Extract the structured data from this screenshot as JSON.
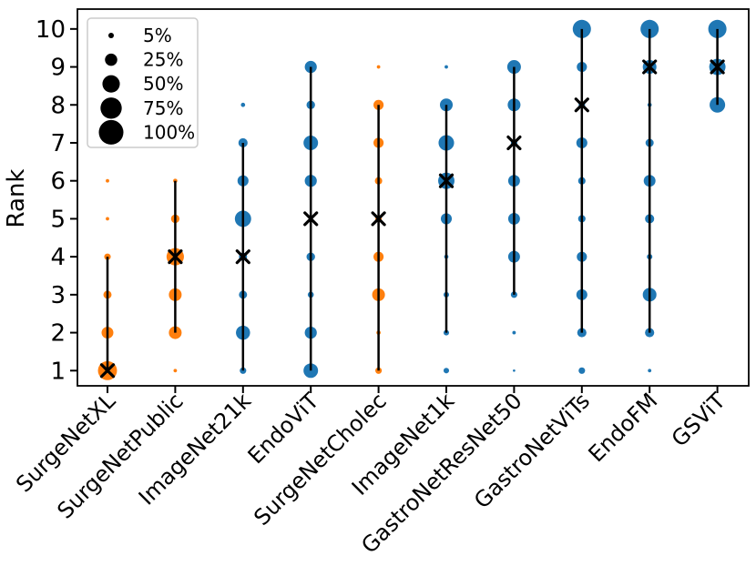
{
  "chart_data": {
    "type": "scatter",
    "title": "",
    "xlabel": "",
    "ylabel": "Rank",
    "yticks": [
      1,
      2,
      3,
      4,
      5,
      6,
      7,
      8,
      9,
      10
    ],
    "ylim": [
      1,
      10
    ],
    "grid": false,
    "xtick_rotation": 45,
    "legend": {
      "position": "upper-left",
      "entries": [
        {
          "label": "5%",
          "pct": 5
        },
        {
          "label": "25%",
          "pct": 25
        },
        {
          "label": "50%",
          "pct": 50
        },
        {
          "label": "75%",
          "pct": 75
        },
        {
          "label": "100%",
          "pct": 100
        }
      ],
      "marker_color": "#000000"
    },
    "colors": {
      "surgenet_series": "#ff7f0e",
      "other_series": "#1f77b4",
      "range_line": "#000000",
      "mean_marker": "#000000"
    },
    "categories": [
      "SurgeNetXL",
      "SurgeNetPublic",
      "ImageNet21k",
      "EndoViT",
      "SurgeNetCholec",
      "ImageNet1k",
      "GastroNetResNet50",
      "GastroNetViTs",
      "EndoFM",
      "GSViT"
    ],
    "series": [
      {
        "name": "SurgeNetXL",
        "color": "#ff7f0e",
        "mean_rank": 1,
        "range": [
          1,
          4
        ],
        "points": [
          {
            "rank": 1,
            "pct": 60
          },
          {
            "rank": 2,
            "pct": 23
          },
          {
            "rank": 3,
            "pct": 11
          },
          {
            "rank": 4,
            "pct": 7
          },
          {
            "rank": 5,
            "pct": 2
          },
          {
            "rank": 6,
            "pct": 2
          }
        ]
      },
      {
        "name": "SurgeNetPublic",
        "color": "#ff7f0e",
        "mean_rank": 4,
        "range": [
          2,
          6
        ],
        "points": [
          {
            "rank": 1,
            "pct": 2
          },
          {
            "rank": 2,
            "pct": 27
          },
          {
            "rank": 3,
            "pct": 27
          },
          {
            "rank": 4,
            "pct": 50
          },
          {
            "rank": 5,
            "pct": 12
          },
          {
            "rank": 6,
            "pct": 3
          }
        ]
      },
      {
        "name": "ImageNet21k",
        "color": "#1f77b4",
        "mean_rank": 4,
        "range": [
          1,
          7
        ],
        "points": [
          {
            "rank": 1,
            "pct": 7
          },
          {
            "rank": 2,
            "pct": 33
          },
          {
            "rank": 3,
            "pct": 11
          },
          {
            "rank": 4,
            "pct": 11
          },
          {
            "rank": 5,
            "pct": 44
          },
          {
            "rank": 6,
            "pct": 20
          },
          {
            "rank": 7,
            "pct": 14
          },
          {
            "rank": 8,
            "pct": 3
          }
        ]
      },
      {
        "name": "EndoViT",
        "color": "#1f77b4",
        "mean_rank": 5,
        "range": [
          1,
          9
        ],
        "points": [
          {
            "rank": 1,
            "pct": 35
          },
          {
            "rank": 2,
            "pct": 24
          },
          {
            "rank": 3,
            "pct": 6
          },
          {
            "rank": 4,
            "pct": 12
          },
          {
            "rank": 5,
            "pct": 2
          },
          {
            "rank": 6,
            "pct": 24
          },
          {
            "rank": 7,
            "pct": 35
          },
          {
            "rank": 8,
            "pct": 12
          },
          {
            "rank": 9,
            "pct": 24
          }
        ]
      },
      {
        "name": "SurgeNetCholec",
        "color": "#ff7f0e",
        "mean_rank": 5,
        "range": [
          1,
          8
        ],
        "points": [
          {
            "rank": 1,
            "pct": 7
          },
          {
            "rank": 2,
            "pct": 3
          },
          {
            "rank": 3,
            "pct": 27
          },
          {
            "rank": 4,
            "pct": 17
          },
          {
            "rank": 5,
            "pct": 7
          },
          {
            "rank": 6,
            "pct": 9
          },
          {
            "rank": 7,
            "pct": 17
          },
          {
            "rank": 8,
            "pct": 17
          },
          {
            "rank": 9,
            "pct": 2
          }
        ]
      },
      {
        "name": "ImageNet1k",
        "color": "#1f77b4",
        "mean_rank": 6,
        "range": [
          2,
          8
        ],
        "points": [
          {
            "rank": 1,
            "pct": 5
          },
          {
            "rank": 2,
            "pct": 5
          },
          {
            "rank": 3,
            "pct": 5
          },
          {
            "rank": 4,
            "pct": 3
          },
          {
            "rank": 5,
            "pct": 20
          },
          {
            "rank": 6,
            "pct": 44
          },
          {
            "rank": 7,
            "pct": 40
          },
          {
            "rank": 8,
            "pct": 27
          },
          {
            "rank": 9,
            "pct": 2
          }
        ]
      },
      {
        "name": "GastroNetResNet50",
        "color": "#1f77b4",
        "mean_rank": 7,
        "range": [
          3,
          9
        ],
        "points": [
          {
            "rank": 1,
            "pct": 1
          },
          {
            "rank": 2,
            "pct": 2
          },
          {
            "rank": 3,
            "pct": 7
          },
          {
            "rank": 4,
            "pct": 23
          },
          {
            "rank": 5,
            "pct": 23
          },
          {
            "rank": 6,
            "pct": 23
          },
          {
            "rank": 7,
            "pct": 7
          },
          {
            "rank": 8,
            "pct": 27
          },
          {
            "rank": 9,
            "pct": 31
          }
        ]
      },
      {
        "name": "GastroNetViTs",
        "color": "#1f77b4",
        "mean_rank": 8,
        "range": [
          2,
          10
        ],
        "points": [
          {
            "rank": 1,
            "pct": 7
          },
          {
            "rank": 2,
            "pct": 14
          },
          {
            "rank": 3,
            "pct": 20
          },
          {
            "rank": 4,
            "pct": 17
          },
          {
            "rank": 5,
            "pct": 9
          },
          {
            "rank": 6,
            "pct": 9
          },
          {
            "rank": 7,
            "pct": 20
          },
          {
            "rank": 8,
            "pct": 7
          },
          {
            "rank": 9,
            "pct": 17
          },
          {
            "rank": 10,
            "pct": 55
          }
        ]
      },
      {
        "name": "EndoFM",
        "color": "#1f77b4",
        "mean_rank": 9,
        "range": [
          2,
          10
        ],
        "points": [
          {
            "rank": 1,
            "pct": 2
          },
          {
            "rank": 2,
            "pct": 14
          },
          {
            "rank": 3,
            "pct": 31
          },
          {
            "rank": 4,
            "pct": 5
          },
          {
            "rank": 5,
            "pct": 14
          },
          {
            "rank": 6,
            "pct": 23
          },
          {
            "rank": 7,
            "pct": 11
          },
          {
            "rank": 8,
            "pct": 3
          },
          {
            "rank": 9,
            "pct": 31
          },
          {
            "rank": 10,
            "pct": 55
          }
        ]
      },
      {
        "name": "GSViT",
        "color": "#1f77b4",
        "mean_rank": 9,
        "range": [
          8,
          10
        ],
        "points": [
          {
            "rank": 8,
            "pct": 40
          },
          {
            "rank": 9,
            "pct": 44
          },
          {
            "rank": 10,
            "pct": 55
          }
        ]
      }
    ]
  }
}
